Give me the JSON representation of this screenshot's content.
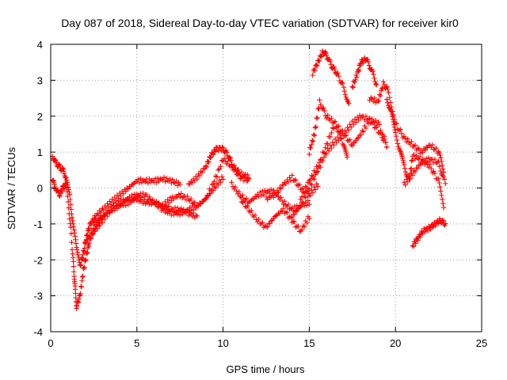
{
  "chart_data": {
    "type": "scatter",
    "title": "Day 087 of 2018, Sidereal Day-to-day VTEC variation (SDTVAR) for receiver kir0",
    "xlabel": "GPS time / hours",
    "ylabel": "SDTVAR / TECUs",
    "xlim": [
      0,
      25
    ],
    "ylim": [
      -4,
      4
    ],
    "xticks": [
      0,
      5,
      10,
      15,
      20,
      25
    ],
    "yticks": [
      -4,
      -3,
      -2,
      -1,
      0,
      1,
      2,
      3,
      4
    ],
    "xtick_labels": [
      "0",
      "5",
      "10",
      "15",
      "20",
      "25"
    ],
    "ytick_labels": [
      "-4",
      "-3",
      "-2",
      "-1",
      "0",
      "1",
      "2",
      "3",
      "4"
    ],
    "grid": true,
    "marker": "+",
    "color": "#ff0000",
    "series": [
      {
        "name": "arc1",
        "x": [
          0.1,
          0.3,
          0.5,
          0.7,
          0.9,
          1.1,
          1.3,
          1.5,
          1.7,
          1.9,
          2.1,
          2.3,
          2.6,
          3.0,
          3.5,
          4.0,
          4.5,
          5.0,
          5.5,
          6.0,
          6.5,
          7.0,
          7.5
        ],
        "y": [
          0.9,
          0.7,
          0.6,
          0.5,
          0.3,
          -0.2,
          -1.0,
          -1.7,
          -2.2,
          -1.8,
          -1.3,
          -1.0,
          -0.8,
          -0.6,
          -0.4,
          -0.2,
          0.0,
          0.2,
          0.2,
          0.2,
          0.25,
          0.2,
          0.1
        ]
      },
      {
        "name": "arc2",
        "x": [
          0.1,
          0.3,
          0.5,
          0.7,
          0.9,
          1.1,
          1.3,
          1.4,
          1.5,
          1.7,
          1.9,
          2.1,
          2.3,
          2.6,
          3.0,
          3.5,
          4.0,
          4.5,
          5.0,
          5.5,
          6.0,
          6.5,
          7.0,
          7.5,
          8.0,
          8.5
        ],
        "y": [
          0.2,
          0.0,
          -0.2,
          0.0,
          0.1,
          -0.8,
          -2.0,
          -2.7,
          -3.3,
          -3.0,
          -2.3,
          -1.8,
          -1.4,
          -1.1,
          -0.8,
          -0.6,
          -0.5,
          -0.4,
          -0.3,
          -0.4,
          -0.4,
          -0.5,
          -0.6,
          -0.6,
          -0.7,
          -0.8
        ]
      },
      {
        "name": "arc3",
        "x": [
          2.5,
          3.0,
          3.5,
          4.0,
          4.5,
          5.0,
          5.5,
          6.0,
          6.5,
          7.0,
          7.5,
          8.0,
          8.5,
          9.0,
          9.5,
          10.0
        ],
        "y": [
          -1.0,
          -0.8,
          -0.6,
          -0.4,
          -0.3,
          -0.3,
          -0.4,
          -0.4,
          -0.6,
          -0.7,
          -0.7,
          -0.6,
          -0.5,
          -0.3,
          0.0,
          0.3
        ]
      },
      {
        "name": "arc4",
        "x": [
          2.0,
          2.5,
          3.0,
          3.5,
          4.0,
          4.5,
          5.0,
          5.5,
          6.0,
          6.5,
          7.0,
          7.5,
          8.0,
          8.5,
          9.0,
          9.5,
          10.0,
          10.5,
          11.0,
          11.5
        ],
        "y": [
          -1.5,
          -1.2,
          -0.9,
          -0.6,
          -0.4,
          -0.3,
          -0.2,
          -0.2,
          -0.4,
          -0.5,
          -0.3,
          -0.2,
          -0.3,
          -0.5,
          -0.3,
          0.2,
          0.8,
          0.6,
          0.3,
          0.2
        ]
      },
      {
        "name": "arc5",
        "x": [
          8.0,
          8.5,
          9.0,
          9.3,
          9.6,
          10.0,
          10.3,
          10.6,
          11.0,
          11.5
        ],
        "y": [
          0.1,
          0.3,
          0.6,
          0.9,
          1.1,
          1.1,
          0.9,
          0.6,
          0.4,
          0.3
        ]
      },
      {
        "name": "arc6",
        "x": [
          10.5,
          11.0,
          11.5,
          12.0,
          12.5,
          13.0,
          13.5,
          14.0,
          14.5,
          15.0
        ],
        "y": [
          0.1,
          -0.2,
          -0.4,
          -0.2,
          -0.1,
          -0.1,
          -0.4,
          -0.6,
          -0.5,
          -0.4
        ]
      },
      {
        "name": "arc7",
        "x": [
          11.0,
          11.5,
          12.0,
          12.5,
          13.0,
          13.5,
          14.0,
          14.5,
          15.0
        ],
        "y": [
          -0.3,
          -0.6,
          -0.9,
          -1.1,
          -0.8,
          -0.6,
          -0.9,
          -1.2,
          -0.8
        ]
      },
      {
        "name": "arc8",
        "x": [
          12.5,
          13.0,
          13.5,
          14.0,
          14.5,
          15.0,
          15.5
        ],
        "y": [
          -0.3,
          -0.2,
          0.1,
          0.3,
          0.0,
          -0.2,
          0.1
        ]
      },
      {
        "name": "arc9",
        "x": [
          14.0,
          14.5,
          15.0,
          15.5,
          16.0,
          16.5,
          17.0,
          17.5,
          18.0,
          18.5,
          19.0,
          19.5
        ],
        "y": [
          -0.8,
          -0.5,
          0.0,
          0.5,
          1.0,
          1.3,
          1.5,
          1.8,
          2.0,
          1.9,
          1.6,
          1.2
        ]
      },
      {
        "name": "arc10",
        "x": [
          14.5,
          15.0,
          15.5,
          16.0,
          16.5,
          17.0,
          17.5,
          18.0,
          18.5,
          19.0,
          19.5
        ],
        "y": [
          -0.3,
          0.2,
          0.6,
          1.2,
          1.8,
          1.5,
          1.2,
          1.5,
          1.9,
          1.8,
          1.2
        ]
      },
      {
        "name": "arc11",
        "x": [
          15.0,
          15.3,
          15.6,
          16.0,
          16.5,
          17.0,
          17.2
        ],
        "y": [
          1.0,
          1.5,
          2.4,
          2.0,
          1.8,
          1.2,
          0.8
        ]
      },
      {
        "name": "arc12",
        "x": [
          15.2,
          15.5,
          15.8,
          16.0,
          16.3,
          16.6,
          17.0,
          17.3
        ],
        "y": [
          3.2,
          3.5,
          3.8,
          3.7,
          3.4,
          3.2,
          2.8,
          2.3
        ]
      },
      {
        "name": "arc13",
        "x": [
          17.5,
          17.8,
          18.0,
          18.3,
          18.6,
          18.9
        ],
        "y": [
          2.8,
          3.2,
          3.5,
          3.6,
          3.3,
          2.9
        ]
      },
      {
        "name": "arc14",
        "x": [
          18.5,
          19.0,
          19.3,
          19.6,
          20.0,
          20.5,
          21.0,
          21.5,
          22.0,
          22.5,
          22.8
        ],
        "y": [
          2.5,
          2.4,
          2.9,
          2.7,
          1.8,
          1.4,
          1.2,
          1.0,
          1.2,
          1.0,
          0.5
        ]
      },
      {
        "name": "arc15",
        "x": [
          19.5,
          19.8,
          20.0,
          20.3,
          20.5,
          20.8,
          21.0,
          21.5,
          22.0,
          22.5,
          22.8
        ],
        "y": [
          2.5,
          2.0,
          1.5,
          1.0,
          0.6,
          0.2,
          0.9,
          0.8,
          0.6,
          0.2,
          -0.6
        ]
      },
      {
        "name": "arc16",
        "x": [
          20.5,
          21.0,
          21.5,
          22.0,
          22.5,
          22.9
        ],
        "y": [
          0.1,
          0.4,
          0.7,
          0.8,
          0.7,
          0.1
        ]
      },
      {
        "name": "arc17",
        "x": [
          21.0,
          21.3,
          21.6,
          22.0,
          22.3,
          22.6,
          22.9
        ],
        "y": [
          -1.6,
          -1.4,
          -1.2,
          -1.1,
          -1.0,
          -0.9,
          -1.0
        ]
      }
    ]
  }
}
